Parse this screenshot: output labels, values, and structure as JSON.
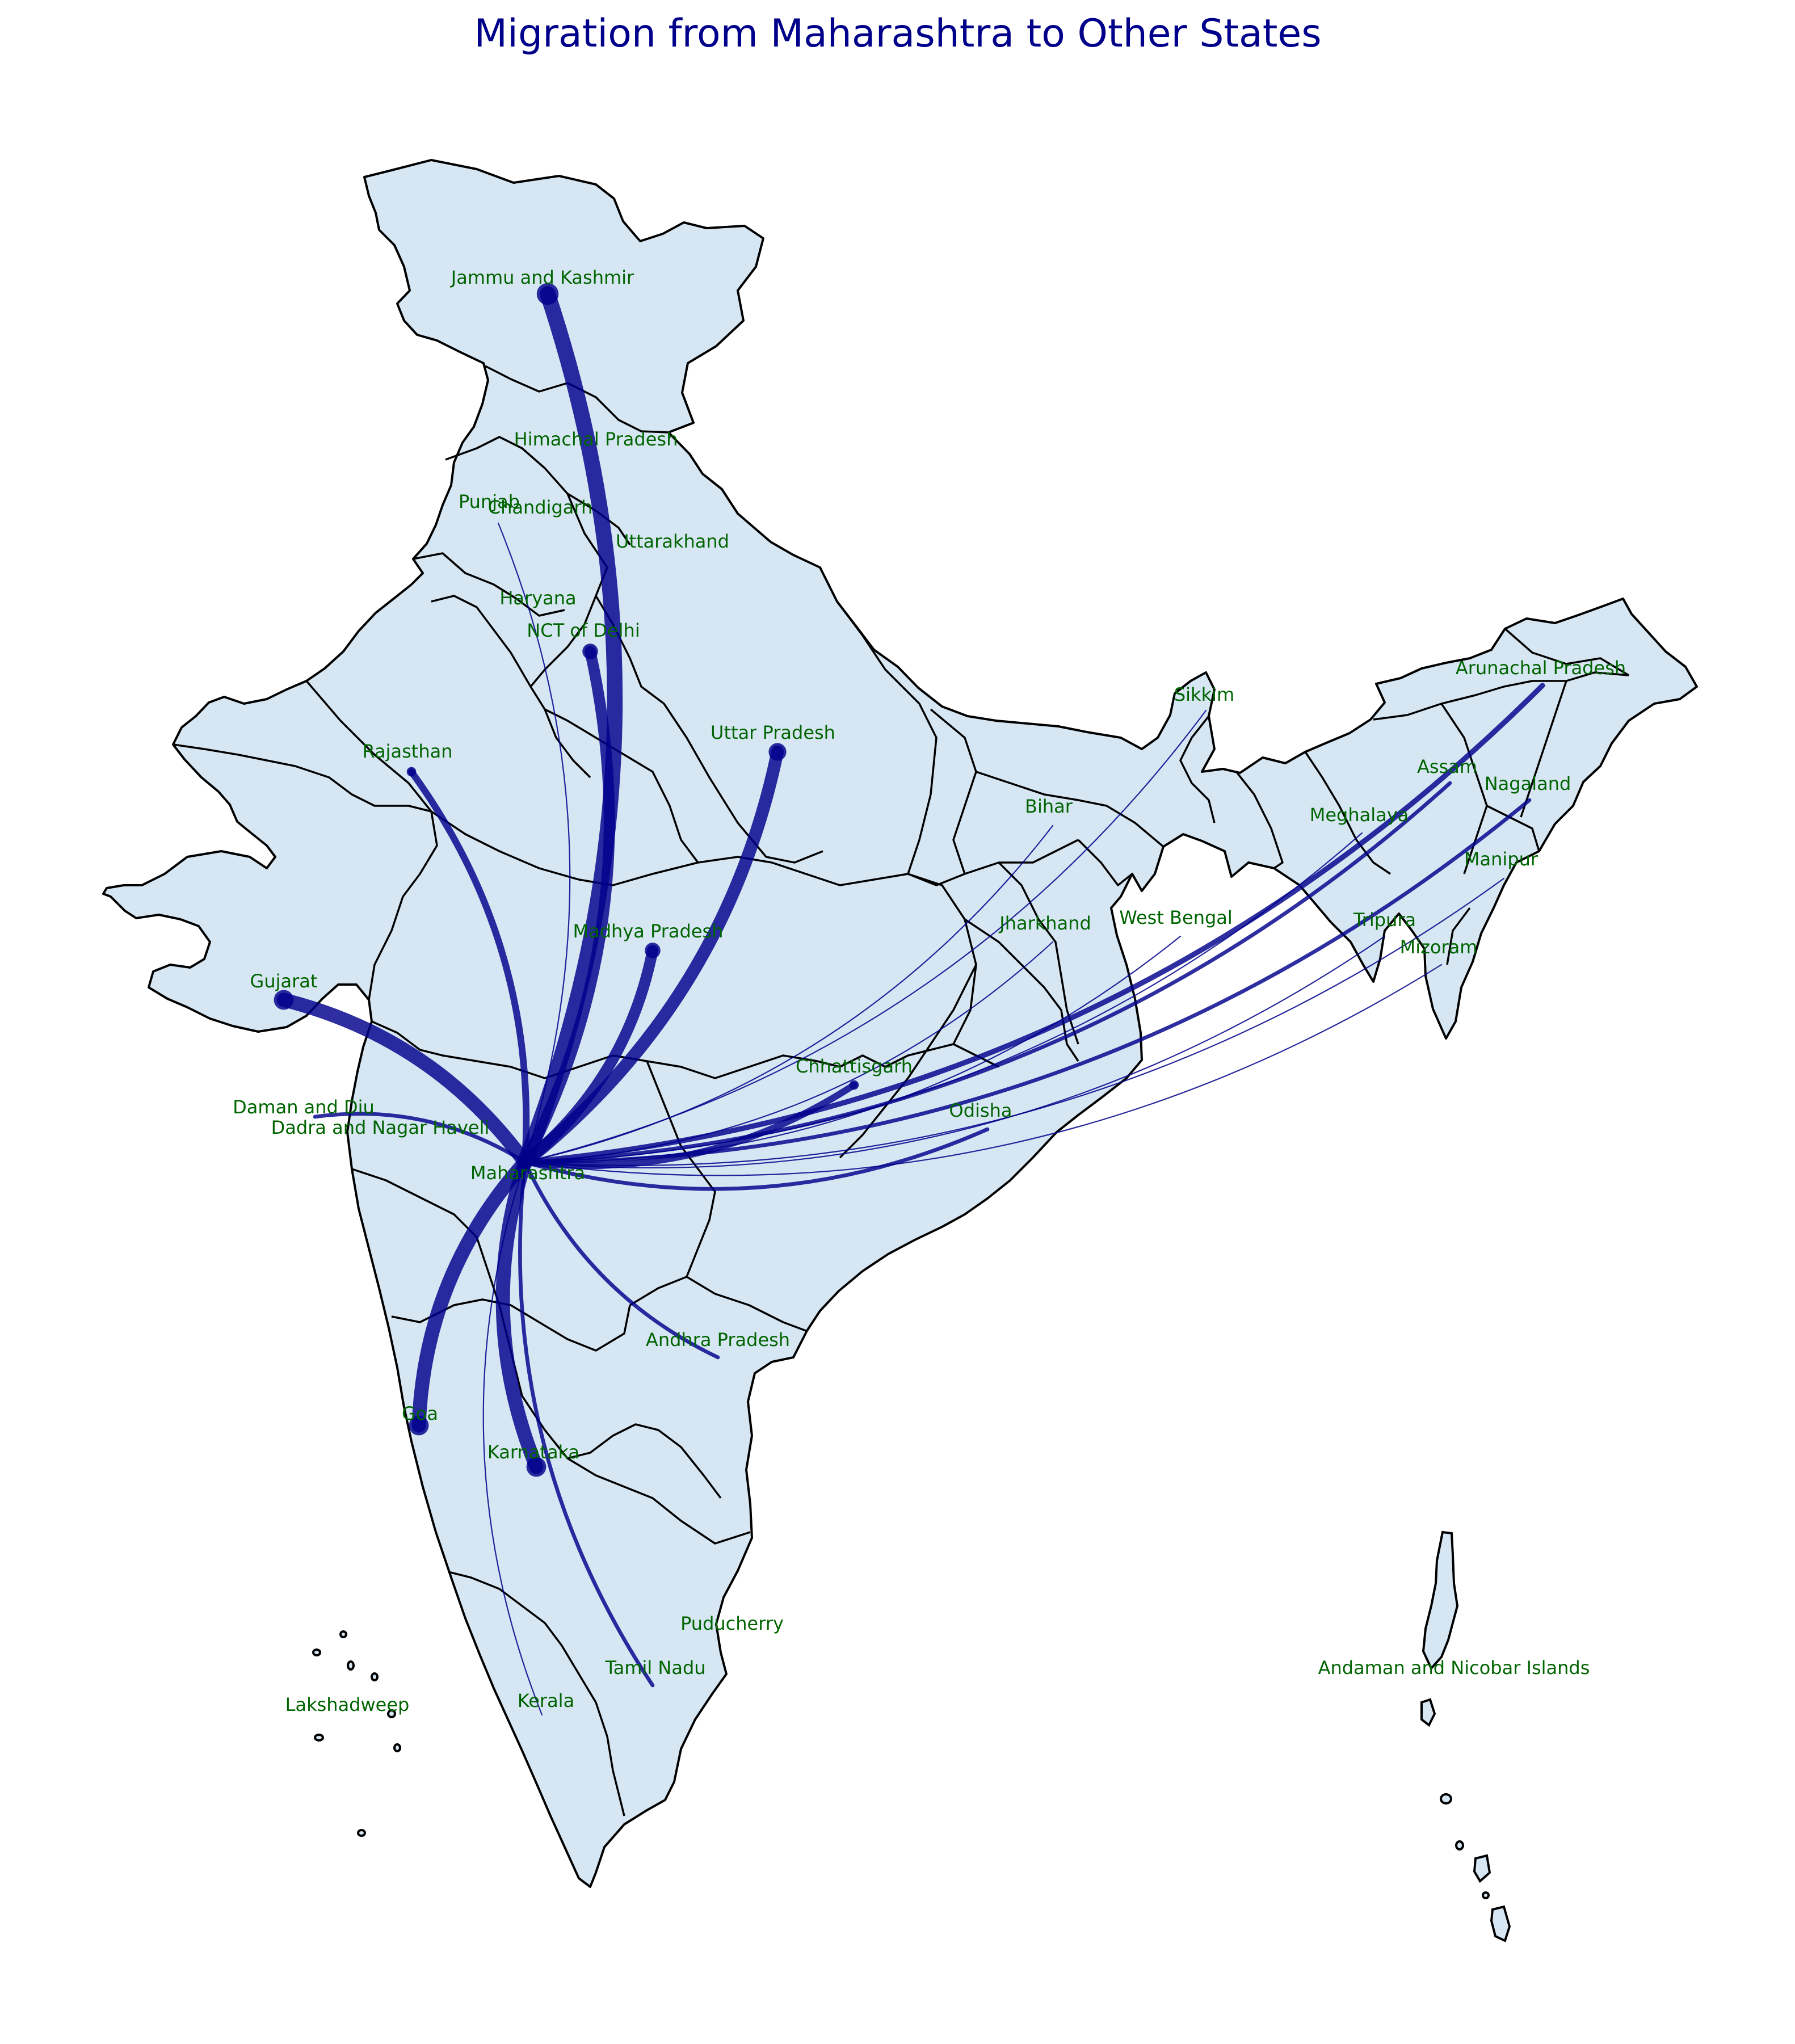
{
  "title": "Migration from Maharashtra to Other States",
  "colors": {
    "land": "#d6e6f3",
    "border": "#000000",
    "flow": "#00008b",
    "label": "#006400",
    "title": "#00008b"
  },
  "origin": {
    "name": "Maharashtra"
  },
  "states": [
    {
      "name": "Jammu and Kashmir",
      "flow_weight": 10
    },
    {
      "name": "Himachal Pradesh",
      "flow_weight": 0
    },
    {
      "name": "Punjab",
      "flow_weight": 1
    },
    {
      "name": "Chandigarh",
      "flow_weight": 0
    },
    {
      "name": "Uttarakhand",
      "flow_weight": 0
    },
    {
      "name": "Haryana",
      "flow_weight": 0
    },
    {
      "name": "NCT of Delhi",
      "flow_weight": 7
    },
    {
      "name": "Uttar Pradesh",
      "flow_weight": 8
    },
    {
      "name": "Rajasthan",
      "flow_weight": 4
    },
    {
      "name": "Madhya Pradesh",
      "flow_weight": 7
    },
    {
      "name": "Gujarat",
      "flow_weight": 9
    },
    {
      "name": "Daman and Diu",
      "flow_weight": 2
    },
    {
      "name": "Dadra and Nagar Haveli",
      "flow_weight": 0
    },
    {
      "name": "Chhattisgarh",
      "flow_weight": 4
    },
    {
      "name": "Odisha",
      "flow_weight": 2
    },
    {
      "name": "Bihar",
      "flow_weight": 1
    },
    {
      "name": "Jharkhand",
      "flow_weight": 1
    },
    {
      "name": "West Bengal",
      "flow_weight": 1
    },
    {
      "name": "Sikkim",
      "flow_weight": 1
    },
    {
      "name": "Arunachal Pradesh",
      "flow_weight": 3
    },
    {
      "name": "Assam",
      "flow_weight": 2
    },
    {
      "name": "Nagaland",
      "flow_weight": 2
    },
    {
      "name": "Meghalaya",
      "flow_weight": 1
    },
    {
      "name": "Manipur",
      "flow_weight": 1
    },
    {
      "name": "Tripura",
      "flow_weight": 1
    },
    {
      "name": "Mizoram",
      "flow_weight": 1
    },
    {
      "name": "Andhra Pradesh",
      "flow_weight": 2
    },
    {
      "name": "Goa",
      "flow_weight": 9
    },
    {
      "name": "Karnataka",
      "flow_weight": 9
    },
    {
      "name": "Kerala",
      "flow_weight": 1
    },
    {
      "name": "Tamil Nadu",
      "flow_weight": 2
    },
    {
      "name": "Puducherry",
      "flow_weight": 0
    },
    {
      "name": "Lakshadweep",
      "flow_weight": 0
    },
    {
      "name": "Andaman and Nicobar Islands",
      "flow_weight": 0
    }
  ]
}
